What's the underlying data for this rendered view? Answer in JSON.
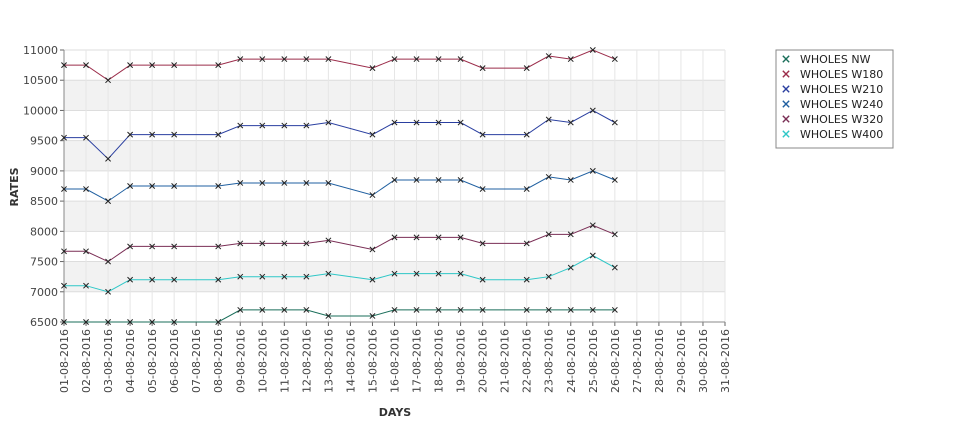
{
  "chart_data": {
    "type": "line",
    "title": "",
    "xlabel": "DAYS",
    "ylabel": "RATES",
    "ylim": [
      6500,
      11000
    ],
    "yticks": [
      6500,
      7000,
      7500,
      8000,
      8500,
      9000,
      9500,
      10000,
      10500,
      11000
    ],
    "grid": true,
    "legend_position": "right",
    "categories": [
      "01-08-2016",
      "02-08-2016",
      "03-08-2016",
      "04-08-2016",
      "05-08-2016",
      "06-08-2016",
      "07-08-2016",
      "08-08-2016",
      "09-08-2016",
      "10-08-2016",
      "11-08-2016",
      "12-08-2016",
      "13-08-2016",
      "14-08-2016",
      "15-08-2016",
      "16-08-2016",
      "17-08-2016",
      "18-08-2016",
      "19-08-2016",
      "20-08-2016",
      "21-08-2016",
      "22-08-2016",
      "23-08-2016",
      "24-08-2016",
      "25-08-2016",
      "26-08-2016",
      "27-08-2016",
      "28-08-2016",
      "29-08-2016",
      "30-08-2016",
      "31-08-2016"
    ],
    "series": [
      {
        "name": "WHOLES NW",
        "color": "#1a6e5a",
        "values": [
          6500,
          6500,
          6500,
          6500,
          6500,
          6500,
          null,
          6500,
          6700,
          6700,
          6700,
          6700,
          6600,
          null,
          6600,
          6700,
          6700,
          6700,
          6700,
          6700,
          null,
          6700,
          6700,
          6700,
          6700,
          6700,
          null,
          null,
          null,
          null,
          null
        ]
      },
      {
        "name": "WHOLES W180",
        "color": "#9b2c4a",
        "values": [
          10750,
          10750,
          10500,
          10750,
          10750,
          10750,
          null,
          10750,
          10850,
          10850,
          10850,
          10850,
          10850,
          null,
          10700,
          10850,
          10850,
          10850,
          10850,
          10700,
          null,
          10700,
          10900,
          10850,
          11000,
          10850,
          null,
          null,
          null,
          null,
          null
        ]
      },
      {
        "name": "WHOLES W210",
        "color": "#2a3fa0",
        "values": [
          9550,
          9550,
          9200,
          9600,
          9600,
          9600,
          null,
          9600,
          9750,
          9750,
          9750,
          9750,
          9800,
          null,
          9600,
          9800,
          9800,
          9800,
          9800,
          9600,
          null,
          9600,
          9850,
          9800,
          10000,
          9800,
          null,
          null,
          null,
          null,
          null
        ]
      },
      {
        "name": "WHOLES W240",
        "color": "#1f5fa0",
        "values": [
          8700,
          8700,
          8500,
          8750,
          8750,
          8750,
          null,
          8750,
          8800,
          8800,
          8800,
          8800,
          8800,
          null,
          8600,
          8850,
          8850,
          8850,
          8850,
          8700,
          null,
          8700,
          8900,
          8850,
          9000,
          8850,
          null,
          null,
          null,
          null,
          null
        ]
      },
      {
        "name": "WHOLES W320",
        "color": "#7a2e55",
        "values": [
          7670,
          7670,
          7500,
          7750,
          7750,
          7750,
          null,
          7750,
          7800,
          7800,
          7800,
          7800,
          7850,
          null,
          7700,
          7900,
          7900,
          7900,
          7900,
          7800,
          null,
          7800,
          7950,
          7950,
          8100,
          7950,
          null,
          null,
          null,
          null,
          null
        ]
      },
      {
        "name": "WHOLES W400",
        "color": "#2ec7c7",
        "values": [
          7100,
          7100,
          7000,
          7200,
          7200,
          7200,
          null,
          7200,
          7250,
          7250,
          7250,
          7250,
          7300,
          null,
          7200,
          7300,
          7300,
          7300,
          7300,
          7200,
          null,
          7200,
          7250,
          7400,
          7600,
          7400,
          null,
          null,
          null,
          null,
          null
        ]
      }
    ]
  }
}
